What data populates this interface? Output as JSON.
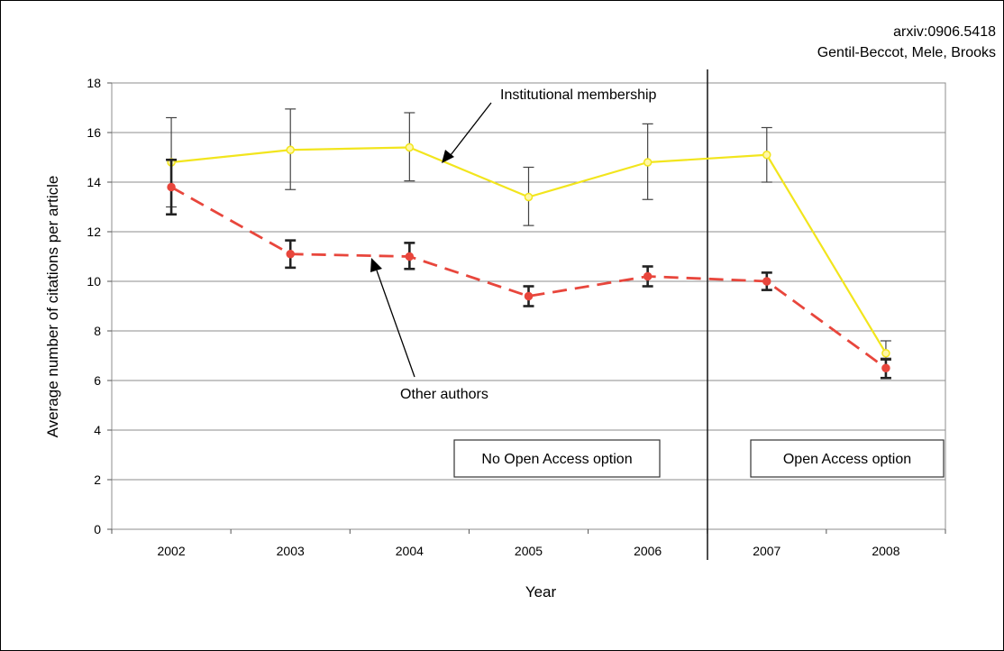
{
  "attribution": {
    "line1": "arxiv:0906.5418",
    "line2": "Gentil-Beccot, Mele, Brooks"
  },
  "colors": {
    "institutional": "#f2e51d",
    "other": "#e8463c",
    "institutional_marker_fill": "#fff7a8",
    "errorbar_institutional": "#444444",
    "errorbar_other": "#222222",
    "grid": "#8c8c8c"
  },
  "chart_data": {
    "type": "line",
    "xlabel": "Year",
    "ylabel": "Average number of citations per article",
    "categories": [
      "2002",
      "2003",
      "2004",
      "2005",
      "2006",
      "2007",
      "2008"
    ],
    "ylim": [
      0,
      18
    ],
    "yticks": [
      "0",
      "2",
      "4",
      "6",
      "8",
      "10",
      "12",
      "14",
      "16",
      "18"
    ],
    "grid": "horizontal",
    "series": [
      {
        "name": "Institutional membership",
        "line_style": "solid",
        "values": [
          14.8,
          15.3,
          15.4,
          13.4,
          14.8,
          15.1,
          7.1
        ],
        "err_low": [
          13.0,
          13.7,
          14.05,
          12.25,
          13.3,
          14.0,
          6.9
        ],
        "err_high": [
          16.6,
          16.95,
          16.8,
          14.6,
          16.35,
          16.2,
          7.6
        ]
      },
      {
        "name": "Other authors",
        "line_style": "dashed",
        "values": [
          13.8,
          11.1,
          11.0,
          9.4,
          10.2,
          10.0,
          6.5
        ],
        "err_low": [
          12.7,
          10.55,
          10.5,
          9.0,
          9.8,
          9.65,
          6.1
        ],
        "err_high": [
          14.9,
          11.65,
          11.55,
          9.8,
          10.6,
          10.35,
          6.85
        ]
      }
    ],
    "annotations": {
      "institutional_label": "Institutional membership",
      "other_label": "Other authors",
      "region_left": "No Open Access option",
      "region_right": "Open Access option"
    }
  }
}
